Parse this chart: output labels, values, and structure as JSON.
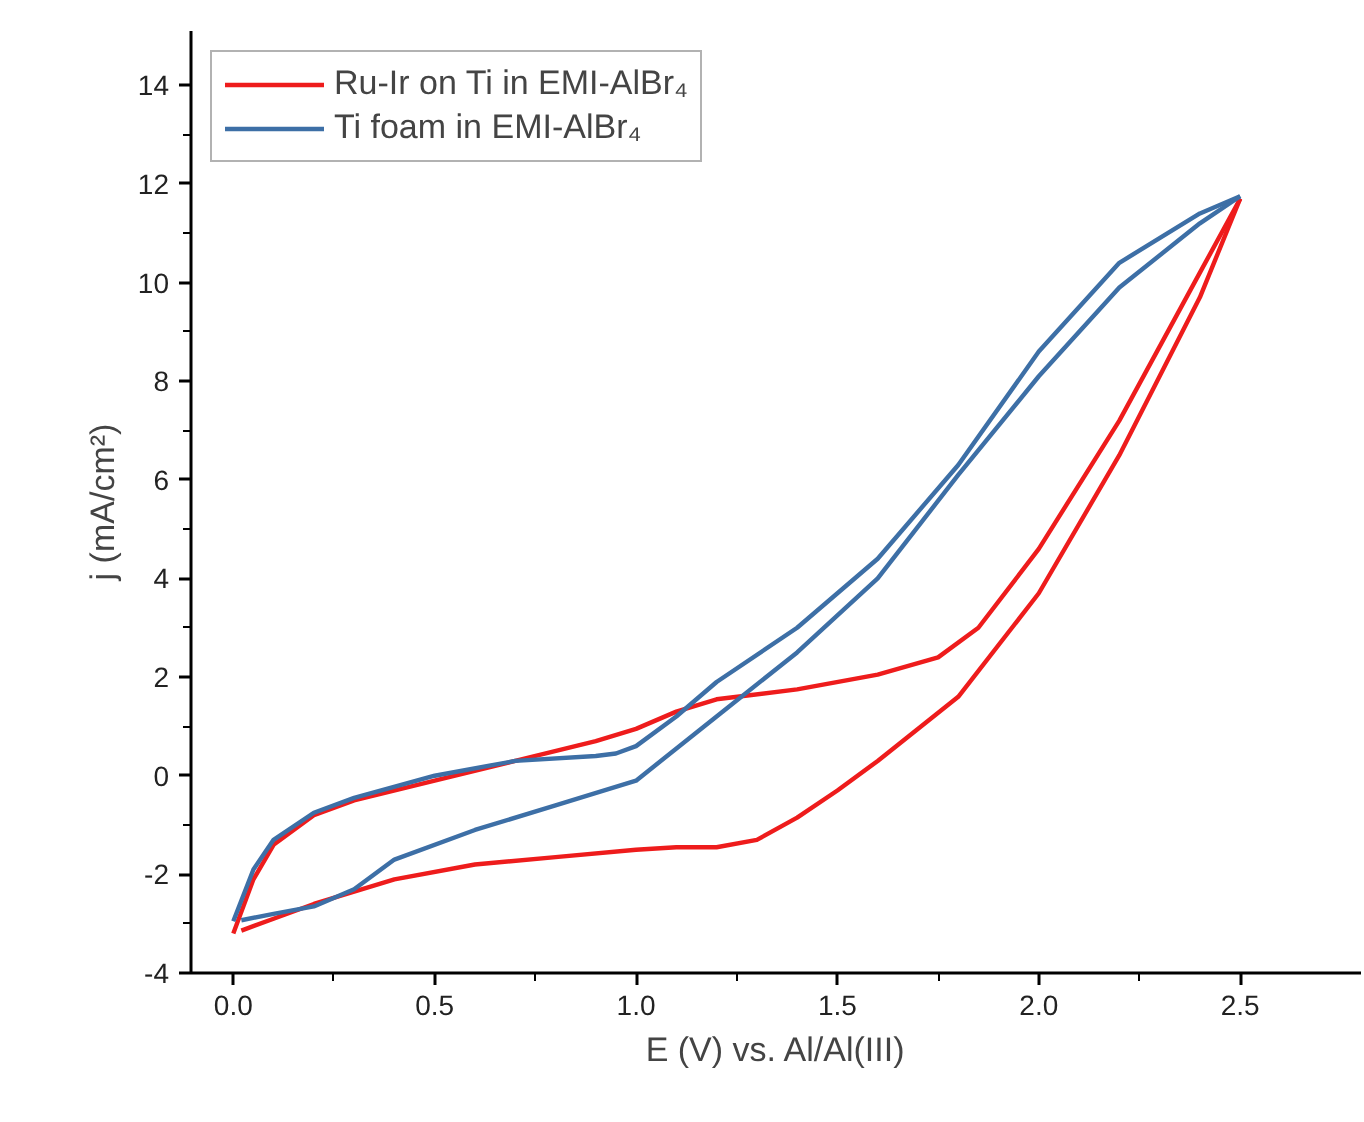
{
  "chart_data": {
    "type": "line",
    "xlabel": "E (V) vs. Al/Al(III)",
    "ylabel": "j (mA/cm²)",
    "xlim": [
      -0.105,
      2.8
    ],
    "ylim": [
      -4,
      15.1
    ],
    "xticks": [
      {
        "value": 0,
        "label": "0.0"
      },
      {
        "value": 0.5,
        "label": "0.5"
      },
      {
        "value": 1,
        "label": "1.0"
      },
      {
        "value": 1.5,
        "label": "1.5"
      },
      {
        "value": 2,
        "label": "2.0"
      },
      {
        "value": 2.5,
        "label": "2.5"
      }
    ],
    "yticks": [
      -4,
      -2,
      0,
      2,
      4,
      6,
      8,
      10,
      12,
      14
    ],
    "grid": false,
    "legend": "top left",
    "marker": "none",
    "line_style": "solid",
    "series": [
      {
        "name": "Ru-Ir on Ti in EMI-AlBr₄",
        "color": "#ee1c1c",
        "x": [
          0,
          0.05,
          0.1,
          0.2,
          0.3,
          0.5,
          0.7,
          0.9,
          1.0,
          1.1,
          1.2,
          1.4,
          1.6,
          1.75,
          1.85,
          2.0,
          2.2,
          2.4,
          2.5
        ],
        "values": [
          -3.2,
          -2.1,
          -1.4,
          -0.8,
          -0.5,
          -0.1,
          0.3,
          0.7,
          0.95,
          1.3,
          1.55,
          1.75,
          2.05,
          2.4,
          3.0,
          4.6,
          7.2,
          10.2,
          11.7
        ]
      },
      {
        "color": "#ee1c1c",
        "x": [
          2.5,
          2.4,
          2.2,
          2.0,
          1.8,
          1.6,
          1.5,
          1.4,
          1.3,
          1.2,
          1.1,
          1.0,
          0.8,
          0.6,
          0.4,
          0.2,
          0.1,
          0.02
        ],
        "values": [
          11.7,
          9.7,
          6.5,
          3.7,
          1.6,
          0.3,
          -0.3,
          -0.85,
          -1.3,
          -1.45,
          -1.45,
          -1.5,
          -1.65,
          -1.8,
          -2.1,
          -2.6,
          -2.9,
          -3.14
        ]
      },
      {
        "name": "Ti foam in EMI-AlBr₄",
        "color": "#3d6fa6",
        "x": [
          0,
          0.05,
          0.1,
          0.2,
          0.3,
          0.5,
          0.7,
          0.9,
          0.95,
          1.0,
          1.1,
          1.2,
          1.4,
          1.6,
          1.8,
          2.0,
          2.2,
          2.4,
          2.5
        ],
        "values": [
          -2.95,
          -1.9,
          -1.3,
          -0.75,
          -0.45,
          0.0,
          0.3,
          0.4,
          0.45,
          0.6,
          1.2,
          1.9,
          3.0,
          4.4,
          6.3,
          8.6,
          10.4,
          11.4,
          11.75
        ]
      },
      {
        "color": "#3d6fa6",
        "x": [
          2.5,
          2.4,
          2.2,
          2.0,
          1.8,
          1.6,
          1.4,
          1.2,
          1.0,
          0.8,
          0.6,
          0.4,
          0.3,
          0.2,
          0.1,
          0.02
        ],
        "values": [
          11.75,
          11.2,
          9.9,
          8.1,
          6.1,
          4.0,
          2.5,
          1.2,
          -0.1,
          -0.6,
          -1.1,
          -1.7,
          -2.3,
          -2.65,
          -2.8,
          -2.93
        ]
      }
    ]
  }
}
